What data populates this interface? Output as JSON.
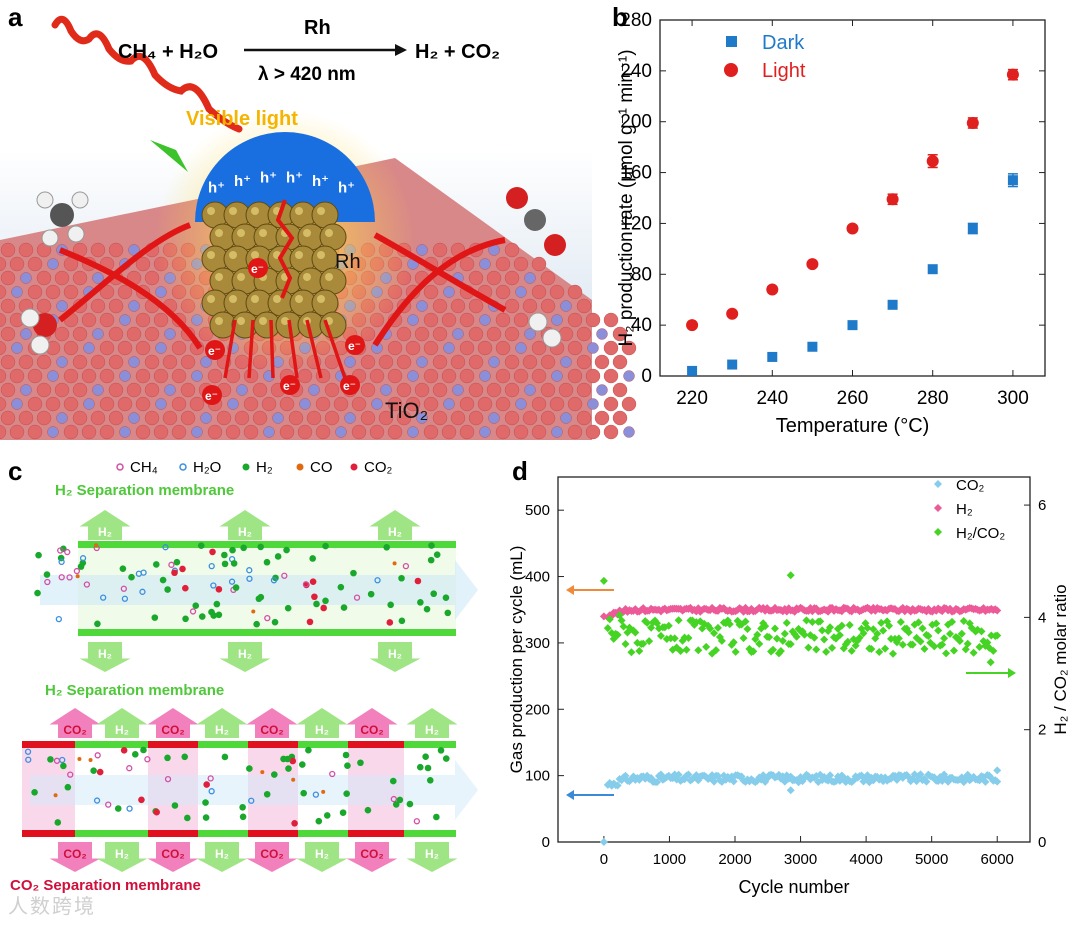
{
  "panels": {
    "a": "a",
    "b": "b",
    "c": "c",
    "d": "d"
  },
  "panel_a": {
    "reactants": "CH₄ + H₂O",
    "catalyst": "Rh",
    "condition": "λ > 420 nm",
    "products": "H₂ + CO₂",
    "visible_light": "Visible light",
    "holes": [
      "h⁺",
      "h⁺",
      "h⁺",
      "h⁺",
      "h⁺",
      "h⁺"
    ],
    "electron": "e⁻",
    "rh_label": "Rh",
    "support_label": "TiO₂",
    "colors": {
      "sky": "#8fb6d8",
      "surface_red": "#e06a6a",
      "surface_blue": "#8b8fd9",
      "rh_gold": "#a88a3a",
      "hole_blue": "#1a6fe0",
      "arrow_red": "#e01515",
      "light_orange": "#f5b400"
    }
  },
  "panel_c": {
    "legend": [
      {
        "label": "CH₄",
        "color": "#d34fa5",
        "style": "ring"
      },
      {
        "label": "H₂O",
        "color": "#3b8fe0",
        "style": "ring"
      },
      {
        "label": "H₂",
        "color": "#19a82c",
        "style": "dot"
      },
      {
        "label": "CO",
        "color": "#e06a10",
        "style": "dot"
      },
      {
        "label": "CO₂",
        "color": "#e0203a",
        "style": "dot"
      }
    ],
    "top_membrane_label": "H₂ Separation membrane",
    "mid_membrane_label": "H₂ Separation membrane",
    "bottom_membrane_label": "CO₂ Separation membrane",
    "h2_arrow_label": "H₂",
    "co2_arrow_label": "CO₂",
    "colors": {
      "green": "#4fd83a",
      "red": "#e0101f",
      "pink": "#f8c8e4",
      "green_arrow": "#8fe070",
      "pink_arrow": "#f06ab2"
    }
  },
  "chart_data": [
    {
      "type": "scatter",
      "panel": "b",
      "xlabel": "Temperature (°C)",
      "ylabel": "H₂ production rate (μmol g⁻¹ min⁻¹)",
      "xlim": [
        212,
        308
      ],
      "ylim": [
        0,
        280
      ],
      "xticks": [
        220,
        240,
        260,
        280,
        300
      ],
      "yticks": [
        0,
        40,
        80,
        120,
        160,
        200,
        240,
        280
      ],
      "legend_position": "top-left",
      "series": [
        {
          "name": "Dark",
          "marker": "square",
          "color": "#1f7ac9",
          "x": [
            220,
            230,
            240,
            250,
            260,
            270,
            280,
            290,
            300
          ],
          "y": [
            4,
            9,
            15,
            23,
            40,
            56,
            84,
            116,
            154
          ],
          "err": [
            0,
            0,
            0,
            0,
            0,
            0,
            0,
            4,
            5
          ]
        },
        {
          "name": "Light",
          "marker": "circle",
          "color": "#e01f1f",
          "x": [
            220,
            230,
            240,
            250,
            260,
            270,
            280,
            290,
            300
          ],
          "y": [
            40,
            49,
            68,
            88,
            116,
            139,
            169,
            199,
            237
          ],
          "err": [
            0,
            0,
            0,
            0,
            0,
            4,
            5,
            4,
            4
          ]
        }
      ]
    },
    {
      "type": "scatter",
      "panel": "d",
      "xlabel": "Cycle number",
      "ylabel": "Gas production per cycle (mL)",
      "y2label": "H₂ / CO₂ molar ratio",
      "xlim": [
        -700,
        6500
      ],
      "ylim": [
        0,
        550
      ],
      "y2lim": [
        0,
        6.5
      ],
      "xticks": [
        0,
        1000,
        2000,
        3000,
        4000,
        5000,
        6000
      ],
      "yticks": [
        0,
        100,
        200,
        300,
        400,
        500
      ],
      "y2ticks": [
        0,
        2,
        4,
        6
      ],
      "legend_position": "top-right",
      "series": [
        {
          "name": "CO₂",
          "marker": "diamond",
          "color": "#86cdeb",
          "axis": "left",
          "start": 0,
          "mean": 96,
          "spread": 6,
          "outliers": [
            [
              2850,
              78
            ],
            [
              6000,
              108
            ]
          ]
        },
        {
          "name": "H₂",
          "marker": "diamond",
          "color": "#ec5a98",
          "axis": "left",
          "start": 340,
          "mean": 350,
          "spread": 3,
          "outliers": []
        },
        {
          "name": "H₂/CO₂",
          "marker": "diamond",
          "color": "#45d424",
          "axis": "right",
          "start": 4.65,
          "mean": 3.65,
          "spread": 0.3,
          "outliers": [
            [
              2850,
              4.75
            ],
            [
              5900,
              3.2
            ]
          ]
        }
      ],
      "arrows": [
        {
          "series": "H₂",
          "direction": "left",
          "color": "#f08a3a"
        },
        {
          "series": "CO₂",
          "direction": "left",
          "color": "#3a8ad8"
        },
        {
          "series": "H₂/CO₂",
          "direction": "right",
          "color": "#45d424"
        }
      ]
    }
  ],
  "watermark": "人数跨境"
}
